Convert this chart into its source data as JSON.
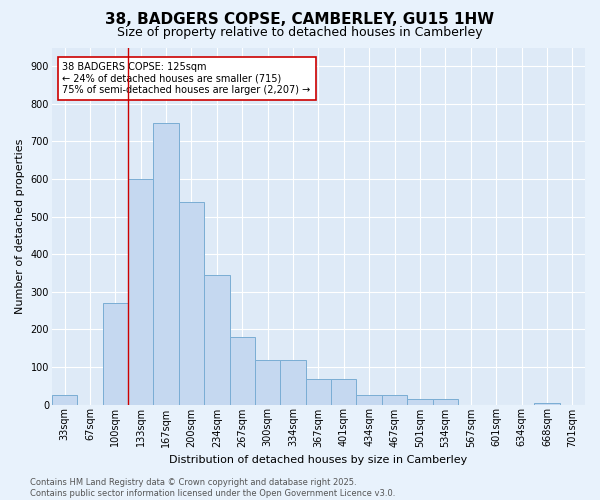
{
  "title": "38, BADGERS COPSE, CAMBERLEY, GU15 1HW",
  "subtitle": "Size of property relative to detached houses in Camberley",
  "xlabel": "Distribution of detached houses by size in Camberley",
  "ylabel": "Number of detached properties",
  "bar_color": "#c5d8f0",
  "bar_edge_color": "#7aadd4",
  "background_color": "#deeaf7",
  "grid_color": "#ffffff",
  "fig_background": "#e8f2fc",
  "categories": [
    "33sqm",
    "67sqm",
    "100sqm",
    "133sqm",
    "167sqm",
    "200sqm",
    "234sqm",
    "267sqm",
    "300sqm",
    "334sqm",
    "367sqm",
    "401sqm",
    "434sqm",
    "467sqm",
    "501sqm",
    "534sqm",
    "567sqm",
    "601sqm",
    "634sqm",
    "668sqm",
    "701sqm"
  ],
  "values": [
    25,
    0,
    270,
    600,
    750,
    540,
    345,
    180,
    118,
    118,
    68,
    68,
    25,
    25,
    15,
    15,
    0,
    0,
    0,
    5,
    0
  ],
  "ylim": [
    0,
    950
  ],
  "yticks": [
    0,
    100,
    200,
    300,
    400,
    500,
    600,
    700,
    800,
    900
  ],
  "property_line_color": "#cc0000",
  "property_line_x": 2.5,
  "annotation_text": "38 BADGERS COPSE: 125sqm\n← 24% of detached houses are smaller (715)\n75% of semi-detached houses are larger (2,207) →",
  "annotation_box_color": "#ffffff",
  "annotation_box_edge": "#cc0000",
  "footer_line1": "Contains HM Land Registry data © Crown copyright and database right 2025.",
  "footer_line2": "Contains public sector information licensed under the Open Government Licence v3.0.",
  "title_fontsize": 11,
  "subtitle_fontsize": 9,
  "ylabel_fontsize": 8,
  "xlabel_fontsize": 8,
  "tick_fontsize": 7,
  "annotation_fontsize": 7,
  "footer_fontsize": 6
}
